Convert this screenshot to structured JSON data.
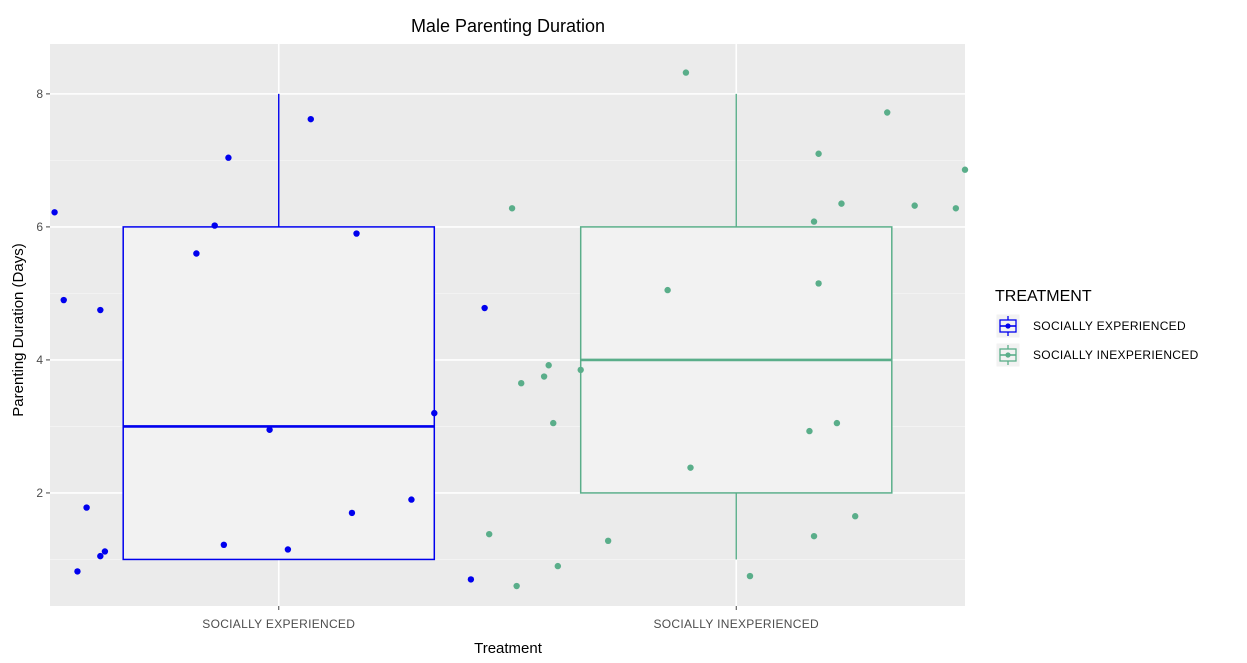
{
  "chart_data": {
    "type": "box",
    "title": "Male Parenting Duration",
    "xlabel": "Treatment",
    "ylabel": "Parenting Duration (Days)",
    "categories": [
      "SOCIALLY EXPERIENCED",
      "SOCIALLY INEXPERIENCED"
    ],
    "ylim": [
      0.3,
      8.75
    ],
    "yticks": [
      2,
      4,
      6,
      8
    ],
    "grid": true,
    "legend": {
      "title": "TREATMENT",
      "position": "right",
      "entries": [
        "SOCIALLY EXPERIENCED",
        "SOCIALLY INEXPERIENCED"
      ]
    },
    "series": [
      {
        "name": "SOCIALLY EXPERIENCED",
        "color": "#0000ee",
        "box": {
          "min": 1,
          "q1": 1,
          "median": 3,
          "q3": 6,
          "max": 8
        },
        "points": [
          {
            "x": -0.49,
            "y": 6.22
          },
          {
            "x": -0.47,
            "y": 4.9
          },
          {
            "x": -0.44,
            "y": 0.82
          },
          {
            "x": -0.42,
            "y": 1.78
          },
          {
            "x": -0.39,
            "y": 1.05
          },
          {
            "x": -0.39,
            "y": 4.75
          },
          {
            "x": -0.38,
            "y": 1.12
          },
          {
            "x": -0.18,
            "y": 5.6
          },
          {
            "x": -0.14,
            "y": 6.02
          },
          {
            "x": -0.12,
            "y": 1.22
          },
          {
            "x": -0.11,
            "y": 7.04
          },
          {
            "x": -0.02,
            "y": 2.95
          },
          {
            "x": 0.02,
            "y": 1.15
          },
          {
            "x": 0.07,
            "y": 7.62
          },
          {
            "x": 0.16,
            "y": 1.7
          },
          {
            "x": 0.17,
            "y": 5.9
          },
          {
            "x": 0.29,
            "y": 1.9
          },
          {
            "x": 0.34,
            "y": 3.2
          },
          {
            "x": 0.42,
            "y": 0.7
          },
          {
            "x": 0.45,
            "y": 4.78
          }
        ]
      },
      {
        "name": "SOCIALLY INEXPERIENCED",
        "color": "#5aae8a",
        "box": {
          "min": 1,
          "q1": 2,
          "median": 4,
          "q3": 6,
          "max": 8
        },
        "points": [
          {
            "x": -0.54,
            "y": 1.38
          },
          {
            "x": -0.49,
            "y": 6.28
          },
          {
            "x": -0.48,
            "y": 0.6
          },
          {
            "x": -0.47,
            "y": 3.65
          },
          {
            "x": -0.42,
            "y": 3.75
          },
          {
            "x": -0.41,
            "y": 3.92
          },
          {
            "x": -0.4,
            "y": 3.05
          },
          {
            "x": -0.39,
            "y": 0.9
          },
          {
            "x": -0.34,
            "y": 3.85
          },
          {
            "x": -0.28,
            "y": 1.28
          },
          {
            "x": -0.15,
            "y": 5.05
          },
          {
            "x": -0.11,
            "y": 8.32
          },
          {
            "x": -0.1,
            "y": 2.38
          },
          {
            "x": 0.03,
            "y": 0.75
          },
          {
            "x": 0.16,
            "y": 2.93
          },
          {
            "x": 0.17,
            "y": 1.35
          },
          {
            "x": 0.17,
            "y": 6.08
          },
          {
            "x": 0.18,
            "y": 5.15
          },
          {
            "x": 0.18,
            "y": 7.1
          },
          {
            "x": 0.22,
            "y": 3.05
          },
          {
            "x": 0.23,
            "y": 6.35
          },
          {
            "x": 0.26,
            "y": 1.65
          },
          {
            "x": 0.33,
            "y": 7.72
          },
          {
            "x": 0.39,
            "y": 6.32
          },
          {
            "x": 0.48,
            "y": 6.28
          },
          {
            "x": 0.5,
            "y": 6.86
          }
        ]
      }
    ]
  }
}
